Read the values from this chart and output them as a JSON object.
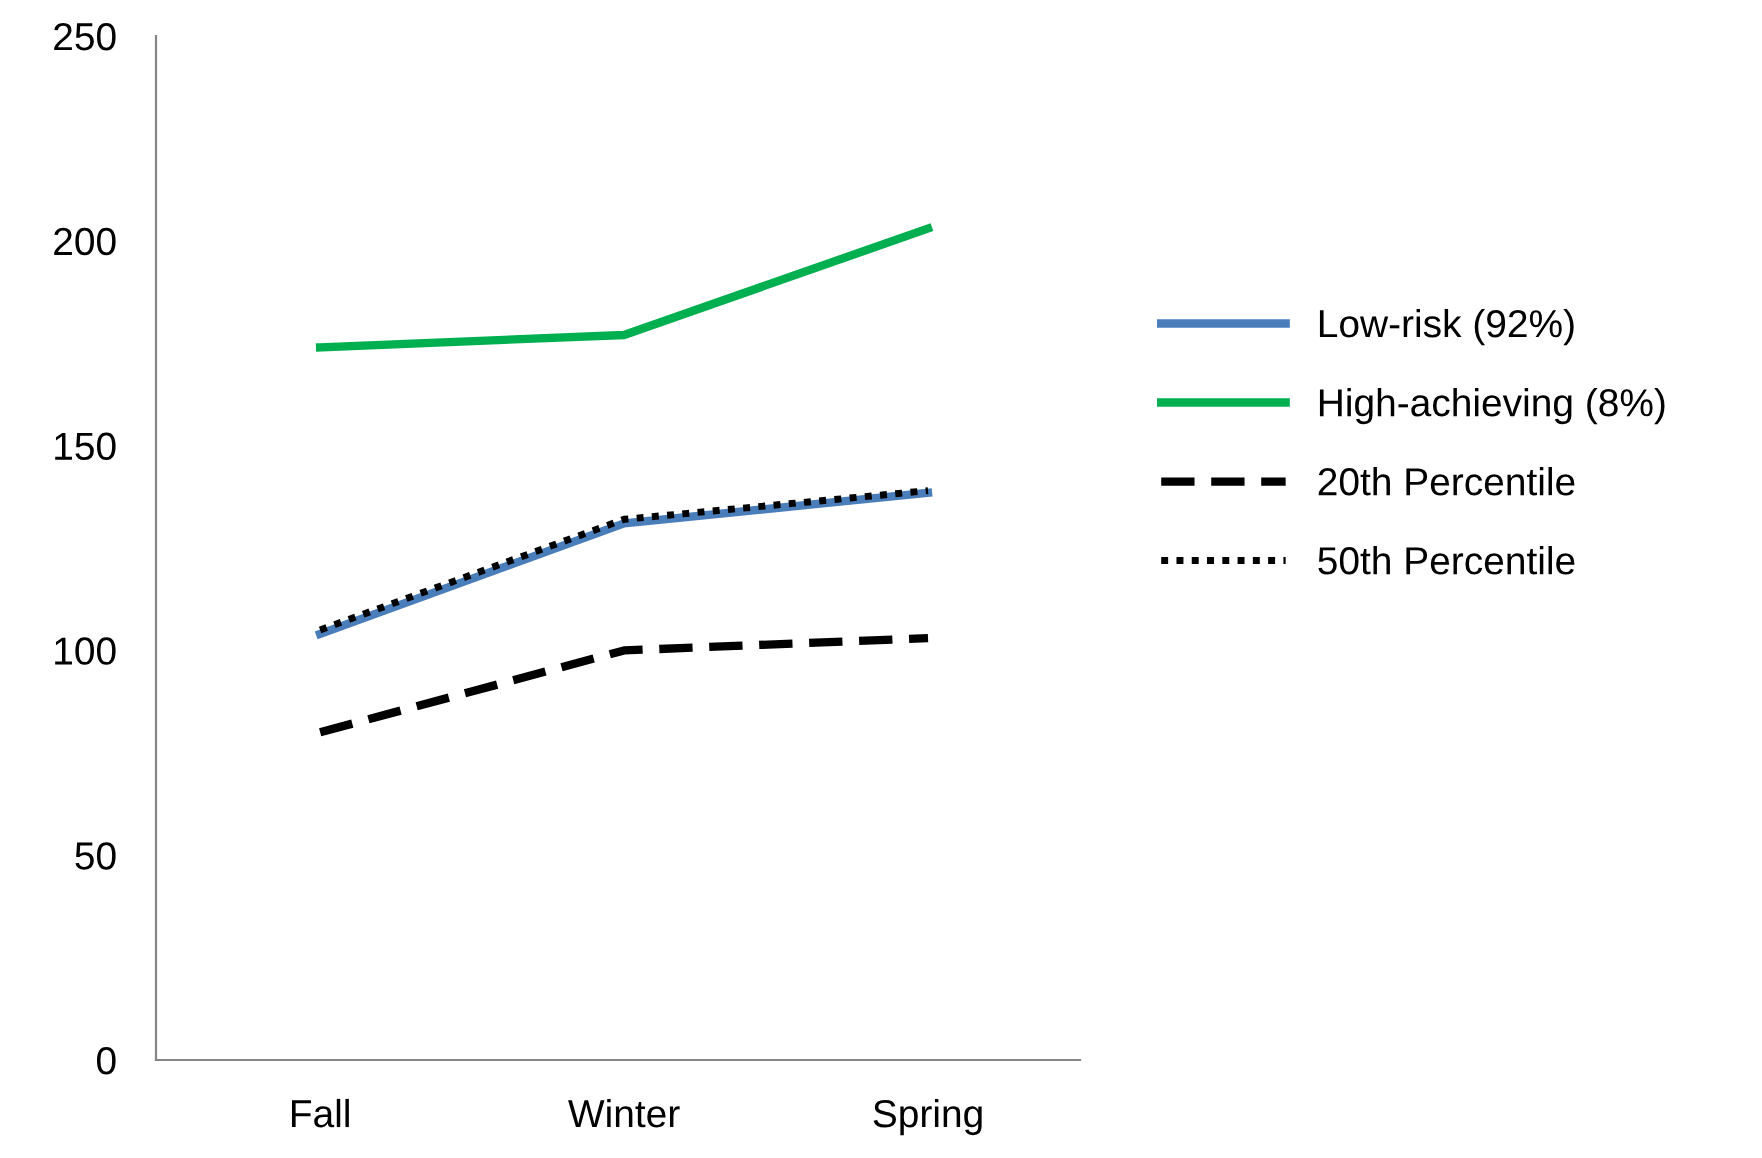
{
  "chart_data": {
    "type": "line",
    "categories": [
      "Fall",
      "Winter",
      "Spring"
    ],
    "series": [
      {
        "name": "Low-risk (92%)",
        "color": "#4a7ebb",
        "values": [
          104,
          131,
          138.5
        ],
        "line_style": "solid"
      },
      {
        "name": "High-achieving (8%)",
        "color": "#00b050",
        "values": [
          174,
          177,
          203
        ],
        "line_style": "solid"
      },
      {
        "name": "20th Percentile",
        "color": "#000000",
        "values": [
          80,
          100,
          103
        ],
        "line_style": "dashed"
      },
      {
        "name": "50th Percentile",
        "color": "#000000",
        "values": [
          105,
          132,
          139
        ],
        "line_style": "dotted"
      }
    ],
    "ylim": [
      0,
      250
    ],
    "yticks": [
      0,
      50,
      100,
      150,
      200,
      250
    ],
    "grid": false,
    "legend": "right",
    "marker": "none"
  }
}
